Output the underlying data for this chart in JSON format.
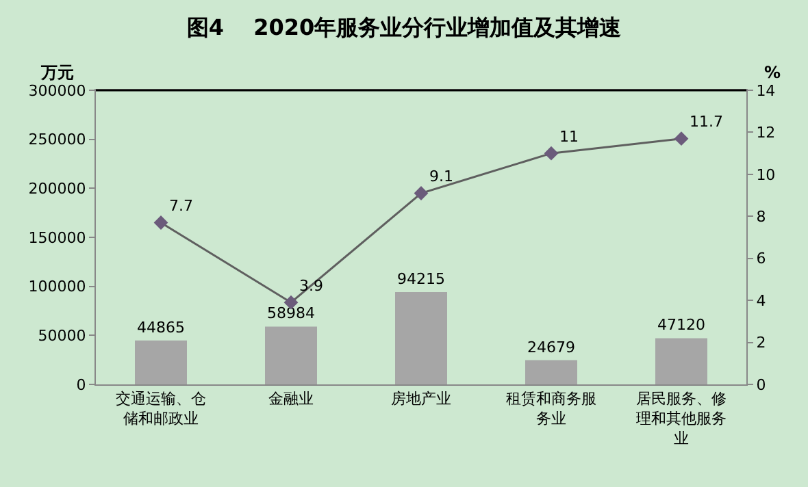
{
  "chart_data": {
    "type": "bar",
    "title": "图4　 2020年服务业分行业增加值及其增速",
    "ylabel": "万元",
    "y2label": "%",
    "categories": [
      "交通运输、仓储和邮政业",
      "金融业",
      "房地产业",
      "租赁和商务服务业",
      "居民服务、修理和其他服务业"
    ],
    "series": [
      {
        "color": "#a6a6a6",
        "values": [
          44865,
          58984,
          94215,
          24679,
          47120
        ]
      },
      {
        "type": "line",
        "axis": "y2",
        "color": "#5f5f5f",
        "marker": "diamond",
        "values": [
          7.7,
          3.9,
          9.1,
          11,
          11.7
        ]
      }
    ],
    "ylim": [
      0,
      300000
    ],
    "yticks": [
      0,
      50000,
      100000,
      150000,
      200000,
      250000,
      300000
    ],
    "y2lim": [
      0,
      14
    ],
    "y2ticks": [
      0,
      2,
      4,
      6,
      8,
      10,
      12,
      14
    ],
    "data_labels": true,
    "grid": false,
    "legend": false
  }
}
